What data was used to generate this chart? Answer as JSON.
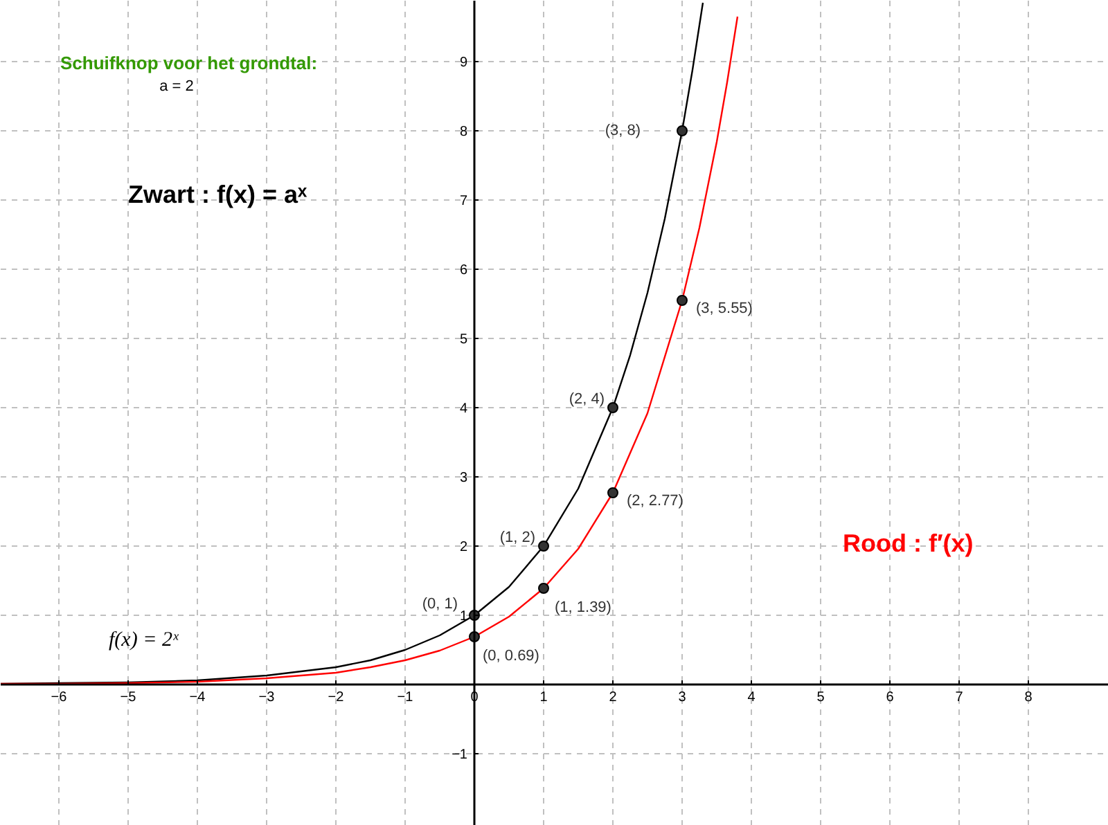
{
  "chart_data": {
    "type": "line",
    "xlim": [
      -6.84,
      9.16
    ],
    "ylim": [
      -2.04,
      9.88
    ],
    "xticks": [
      -6,
      -5,
      -4,
      -3,
      -2,
      -1,
      0,
      1,
      2,
      3,
      4,
      5,
      6,
      7,
      8
    ],
    "yticks": [
      -1,
      1,
      2,
      3,
      4,
      5,
      6,
      7,
      8,
      9
    ],
    "grid": true,
    "marker": "none",
    "line_style": "solid",
    "series": [
      {
        "color": "#000000",
        "x": [
          -6.84,
          -6,
          -5,
          -4,
          -3,
          -2,
          -1.5,
          -1,
          -0.5,
          0,
          0.5,
          1,
          1.5,
          2,
          2.25,
          2.5,
          2.75,
          3,
          3.15,
          3.3
        ],
        "values": [
          0.01,
          0.02,
          0.03,
          0.06,
          0.13,
          0.25,
          0.35,
          0.5,
          0.71,
          1,
          1.41,
          2,
          2.83,
          4,
          4.76,
          5.66,
          6.73,
          8,
          8.88,
          9.85
        ]
      },
      {
        "color": "#ff0000",
        "x": [
          -6.84,
          -6,
          -5,
          -4,
          -3,
          -2,
          -1.5,
          -1,
          -0.5,
          0,
          0.5,
          1,
          1.5,
          2,
          2.5,
          3,
          3.25,
          3.5,
          3.65,
          3.8
        ],
        "values": [
          0.01,
          0.01,
          0.02,
          0.04,
          0.09,
          0.17,
          0.25,
          0.35,
          0.49,
          0.69,
          0.98,
          1.39,
          1.96,
          2.77,
          3.92,
          5.55,
          6.6,
          7.84,
          8.7,
          9.65
        ]
      },
      {
        "type": "scatter",
        "marker": "circle",
        "color": "#333333",
        "x": [
          0,
          1,
          2,
          3,
          0,
          1,
          2,
          3
        ],
        "values": [
          1,
          2,
          4,
          8,
          0.69,
          1.39,
          2.77,
          5.55
        ]
      }
    ],
    "annotations": [
      "Schuifknop voor het grondtal:",
      "a = 2",
      "Zwart : f(x) = aˣ",
      "Rood : f′(x)",
      "f(x) = 2ˣ",
      {
        "text": "(0, 1)",
        "x": 0,
        "y": 1
      },
      {
        "text": "(1, 2)",
        "x": 1,
        "y": 2
      },
      {
        "text": "(2, 4)",
        "x": 2,
        "y": 4
      },
      {
        "text": "(3, 8)",
        "x": 3,
        "y": 8
      },
      {
        "text": "(0, 0.69)",
        "x": 0,
        "y": 0.69
      },
      {
        "text": "(1, 1.39)",
        "x": 1,
        "y": 1.39
      },
      {
        "text": "(2, 2.77)",
        "x": 2,
        "y": 2.77
      },
      {
        "text": "(3, 5.55)",
        "x": 3,
        "y": 5.55
      }
    ]
  }
}
